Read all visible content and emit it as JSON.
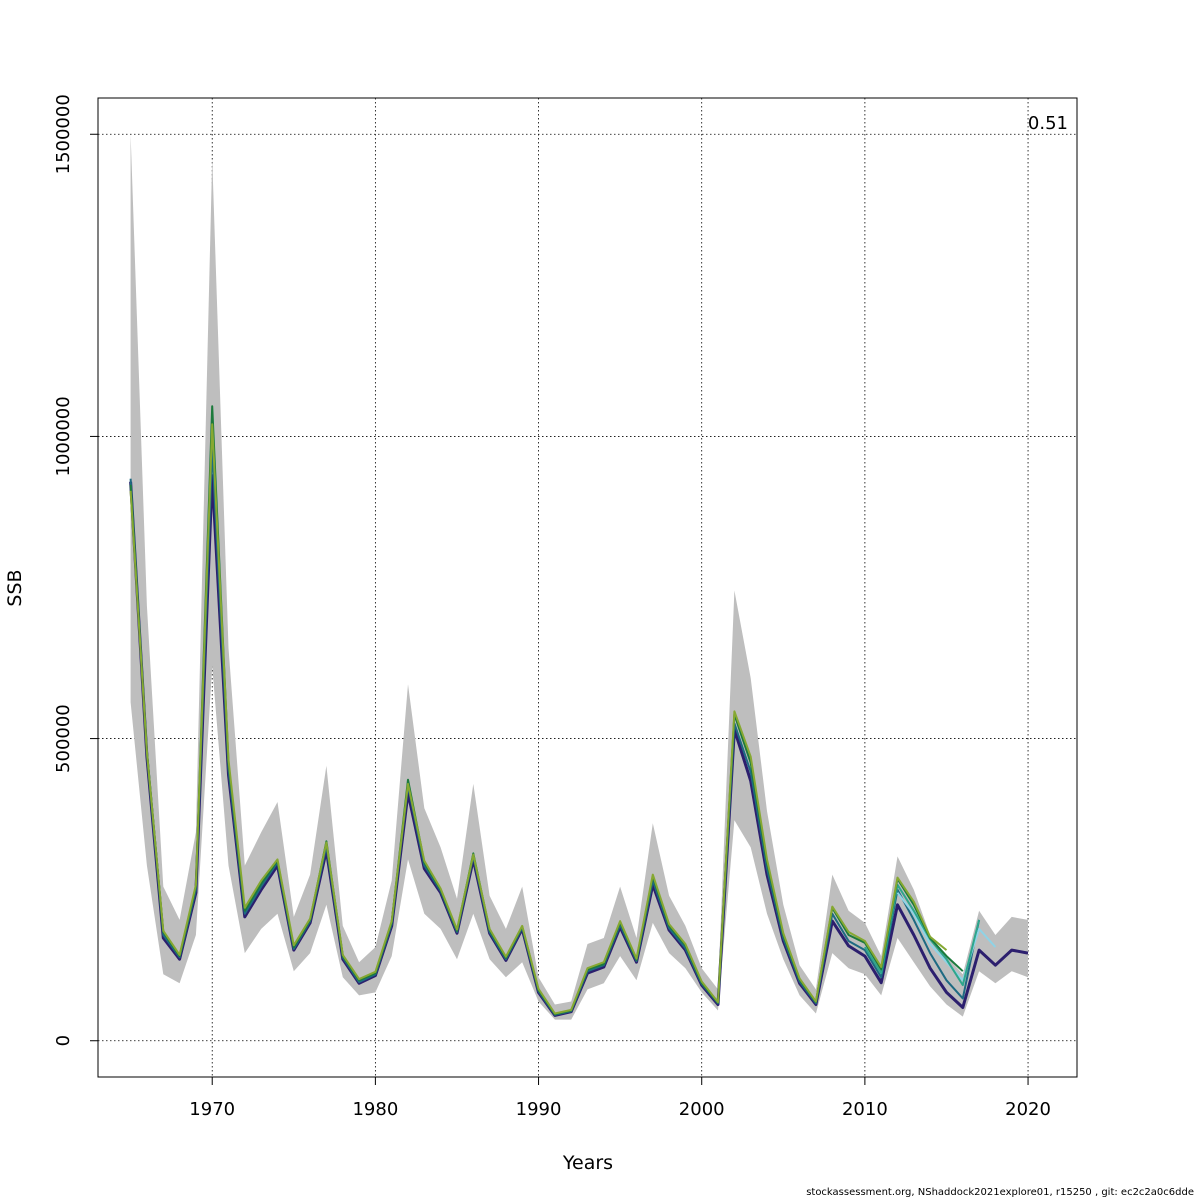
{
  "footer": "stockassessment.org, NShaddock2021explore01, r15250 , git: ec2c2a0c6dde",
  "chart_data": {
    "type": "line",
    "xlabel": "Years",
    "ylabel": "SSB",
    "annotation": "0.51",
    "xlim": [
      1963,
      2023
    ],
    "ylim": [
      -60000,
      1560000
    ],
    "x_ticks": [
      1970,
      1980,
      1990,
      2000,
      2010,
      2020
    ],
    "y_ticks": [
      0,
      500000,
      1000000,
      1500000
    ],
    "grid": true,
    "band": {
      "x": [
        1965,
        1966,
        1967,
        1968,
        1969,
        1970,
        1971,
        1972,
        1973,
        1974,
        1975,
        1976,
        1977,
        1978,
        1979,
        1980,
        1981,
        1982,
        1983,
        1984,
        1985,
        1986,
        1987,
        1988,
        1989,
        1990,
        1991,
        1992,
        1993,
        1994,
        1995,
        1996,
        1997,
        1998,
        1999,
        2000,
        2001,
        2002,
        2003,
        2004,
        2005,
        2006,
        2007,
        2008,
        2009,
        2010,
        2011,
        2012,
        2013,
        2014,
        2015,
        2016,
        2017,
        2018,
        2019,
        2020
      ],
      "lower": [
        560000,
        290000,
        110000,
        95000,
        175000,
        620000,
        290000,
        145000,
        185000,
        210000,
        115000,
        145000,
        225000,
        105000,
        75000,
        80000,
        140000,
        300000,
        210000,
        185000,
        135000,
        210000,
        135000,
        105000,
        130000,
        65000,
        35000,
        35000,
        85000,
        95000,
        140000,
        100000,
        195000,
        145000,
        120000,
        80000,
        50000,
        365000,
        320000,
        210000,
        135000,
        75000,
        45000,
        145000,
        120000,
        110000,
        75000,
        170000,
        130000,
        90000,
        60000,
        40000,
        115000,
        95000,
        115000,
        105000
      ],
      "upper": [
        1500000,
        720000,
        255000,
        200000,
        345000,
        1460000,
        650000,
        290000,
        345000,
        395000,
        205000,
        275000,
        455000,
        190000,
        130000,
        155000,
        265000,
        590000,
        385000,
        320000,
        235000,
        425000,
        240000,
        185000,
        255000,
        105000,
        60000,
        65000,
        160000,
        170000,
        255000,
        170000,
        360000,
        240000,
        190000,
        120000,
        85000,
        745000,
        600000,
        380000,
        225000,
        125000,
        85000,
        275000,
        215000,
        195000,
        140000,
        305000,
        250000,
        175000,
        140000,
        110000,
        215000,
        175000,
        205000,
        200000
      ]
    },
    "series": [
      {
        "color": "#2c1f6e",
        "x": [
          1965,
          1966,
          1967,
          1968,
          1969,
          1970,
          1971,
          1972,
          1973,
          1974,
          1975,
          1976,
          1977,
          1978,
          1979,
          1980,
          1981,
          1982,
          1983,
          1984,
          1985,
          1986,
          1987,
          1988,
          1989,
          1990,
          1991,
          1992,
          1993,
          1994,
          1995,
          1996,
          1997,
          1998,
          1999,
          2000,
          2001,
          2002,
          2003,
          2004,
          2005,
          2006,
          2007,
          2008,
          2009,
          2010,
          2011,
          2012,
          2013,
          2014,
          2015,
          2016,
          2017,
          2018,
          2019,
          2020
        ],
        "values": [
          925000,
          470000,
          170000,
          135000,
          245000,
          935000,
          440000,
          205000,
          250000,
          290000,
          150000,
          195000,
          315000,
          135000,
          95000,
          108000,
          190000,
          410000,
          285000,
          245000,
          178000,
          300000,
          178000,
          133000,
          185000,
          80000,
          42000,
          48000,
          112000,
          122000,
          188000,
          130000,
          258000,
          183000,
          150000,
          92000,
          60000,
          515000,
          430000,
          275000,
          165000,
          95000,
          60000,
          198000,
          157000,
          140000,
          96000,
          225000,
          175000,
          120000,
          80000,
          55000,
          150000,
          125000,
          150000,
          145000
        ]
      },
      {
        "color": "#1e6a82",
        "x": [
          1965,
          1966,
          1967,
          1968,
          1969,
          1970,
          1971,
          1972,
          1973,
          1974,
          1975,
          1976,
          1977,
          1978,
          1979,
          1980,
          1981,
          1982,
          1983,
          1984,
          1985,
          1986,
          1987,
          1988,
          1989,
          1990,
          1991,
          1992,
          1993,
          1994,
          1995,
          1996,
          1997,
          1998,
          1999,
          2000,
          2001,
          2002,
          2003,
          2004,
          2005,
          2006,
          2007,
          2008,
          2009,
          2010,
          2011,
          2012,
          2013,
          2014,
          2015,
          2016,
          2017
        ],
        "values": [
          930000,
          475000,
          175000,
          138000,
          250000,
          980000,
          450000,
          210000,
          255000,
          295000,
          152000,
          198000,
          322000,
          138000,
          97000,
          110000,
          193000,
          422000,
          290000,
          248000,
          180000,
          305000,
          180000,
          135000,
          187000,
          82000,
          43000,
          49000,
          115000,
          125000,
          192000,
          132000,
          265000,
          186000,
          153000,
          94000,
          62000,
          525000,
          445000,
          285000,
          170000,
          98000,
          62000,
          210000,
          165000,
          150000,
          105000,
          250000,
          200000,
          145000,
          100000,
          70000,
          200000
        ]
      },
      {
        "color": "#8fd3e6",
        "x": [
          2012,
          2013,
          2014,
          2015,
          2016,
          2017,
          2018
        ],
        "values": [
          245000,
          210000,
          160000,
          130000,
          100000,
          185000,
          155000
        ]
      },
      {
        "color": "#2ea68c",
        "x": [
          2010,
          2011,
          2012,
          2013,
          2014,
          2015,
          2016,
          2017
        ],
        "values": [
          155000,
          112000,
          258000,
          215000,
          168000,
          135000,
          92000,
          200000
        ]
      },
      {
        "color": "#1c7a3c",
        "x": [
          1965,
          1966,
          1967,
          1968,
          1969,
          1970,
          1971,
          1972,
          1973,
          1974,
          1975,
          1976,
          1977,
          1978,
          1979,
          1980,
          1981,
          1982,
          1983,
          1984,
          1985,
          1986,
          1987,
          1988,
          1989,
          1990,
          1991,
          1992,
          1993,
          1994,
          1995,
          1996,
          1997,
          1998,
          1999,
          2000,
          2001,
          2002,
          2003,
          2004,
          2005,
          2006,
          2007,
          2008,
          2009,
          2010,
          2011,
          2012,
          2013,
          2014,
          2015,
          2016
        ],
        "values": [
          920000,
          480000,
          180000,
          140000,
          255000,
          1050000,
          460000,
          215000,
          260000,
          298000,
          155000,
          200000,
          330000,
          140000,
          100000,
          112000,
          196000,
          432000,
          295000,
          250000,
          182000,
          310000,
          183000,
          137000,
          189000,
          84000,
          44000,
          50000,
          118000,
          127000,
          196000,
          134000,
          272000,
          190000,
          158000,
          96000,
          63000,
          540000,
          460000,
          295000,
          175000,
          101000,
          64000,
          220000,
          175000,
          162000,
          118000,
          268000,
          225000,
          170000,
          140000,
          115000
        ]
      },
      {
        "color": "#86a832",
        "x": [
          1965,
          1966,
          1967,
          1968,
          1969,
          1970,
          1971,
          1972,
          1973,
          1974,
          1975,
          1976,
          1977,
          1978,
          1979,
          1980,
          1981,
          1982,
          1983,
          1984,
          1985,
          1986,
          1987,
          1988,
          1989,
          1990,
          1991,
          1992,
          1993,
          1994,
          1995,
          1996,
          1997,
          1998,
          1999,
          2000,
          2001,
          2002,
          2003,
          2004,
          2005,
          2006,
          2007,
          2008,
          2009,
          2010,
          2011,
          2012,
          2013,
          2014,
          2015
        ],
        "values": [
          910000,
          478000,
          182000,
          142000,
          258000,
          1020000,
          465000,
          220000,
          265000,
          300000,
          158000,
          202000,
          328000,
          142000,
          102000,
          114000,
          198000,
          425000,
          298000,
          252000,
          184000,
          308000,
          185000,
          139000,
          190000,
          86000,
          45000,
          51000,
          120000,
          130000,
          198000,
          136000,
          275000,
          193000,
          160000,
          98000,
          64000,
          545000,
          470000,
          300000,
          178000,
          103000,
          65000,
          222000,
          180000,
          165000,
          122000,
          270000,
          230000,
          172000,
          150000
        ]
      }
    ]
  }
}
